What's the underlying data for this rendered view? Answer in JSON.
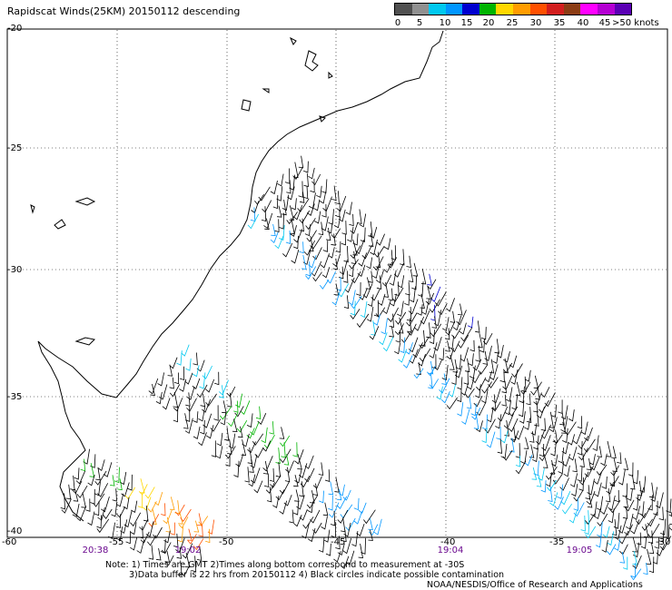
{
  "title": "Rapidscat Winds(25KM) 20150112 descending",
  "scale": {
    "labels": [
      "0",
      "5",
      "10",
      "15",
      "20",
      "25",
      "30",
      "35",
      "40",
      "45",
      ">50 knots"
    ],
    "colors": [
      "#505050",
      "#909090",
      "#00c8f0",
      "#0096ff",
      "#0000d0",
      "#00b400",
      "#ffd700",
      "#ff9c00",
      "#ff5000",
      "#d21e1e",
      "#8c3c14",
      "#ff00ff",
      "#b400d2",
      "#5a00b4"
    ]
  },
  "lat_labels": [
    "-20",
    "-25",
    "-30",
    "-35",
    "-40"
  ],
  "lon_labels": [
    "-60",
    "-50",
    "-45",
    "-40",
    "-35",
    "-30"
  ],
  "lon_label_partial": "-55",
  "times": [
    "20:38",
    "19:02",
    "19:04",
    "19:05"
  ],
  "notes": {
    "line1": "Note: 1) Times are GMT 2)Times along bottom correspond to measurement at -30S",
    "line2": "3)Data buffer is 22 hrs from 20150112 4) Black circles indicate possible contamination",
    "line3": "NOAA/NESDIS/Office of Research and Applications"
  }
}
